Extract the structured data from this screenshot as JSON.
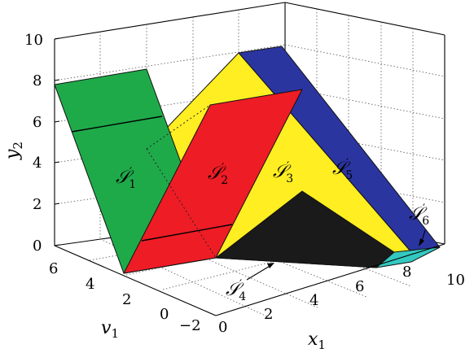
{
  "axes": {
    "y2": {
      "label": "y",
      "sub": "2",
      "ticks": [
        "0",
        "2",
        "4",
        "6",
        "8",
        "10"
      ]
    },
    "v1": {
      "label": "v",
      "sub": "1",
      "ticks": [
        "6",
        "4",
        "2",
        "0",
        "−2"
      ]
    },
    "x1": {
      "label": "x",
      "sub": "1",
      "ticks": [
        "0",
        "2",
        "4",
        "6",
        "8",
        "10"
      ]
    }
  },
  "regions": [
    {
      "id": "S1",
      "base": "𝒮",
      "prime": "′",
      "sub": "1",
      "color": "#1faa4a"
    },
    {
      "id": "S2",
      "base": "𝒮",
      "prime": "′",
      "sub": "2",
      "color": "#ee1c25"
    },
    {
      "id": "S3",
      "base": "𝒮",
      "prime": "′",
      "sub": "3",
      "color": "#ffee22"
    },
    {
      "id": "S4",
      "base": "𝒮",
      "prime": "′",
      "sub": "4",
      "color": "#1a1a1a"
    },
    {
      "id": "S5",
      "base": "𝒮",
      "prime": "′",
      "sub": "5",
      "color": "#2b35a0"
    },
    {
      "id": "S6",
      "base": "𝒮",
      "prime": "′",
      "sub": "6",
      "color": "#33c9c0"
    }
  ]
}
